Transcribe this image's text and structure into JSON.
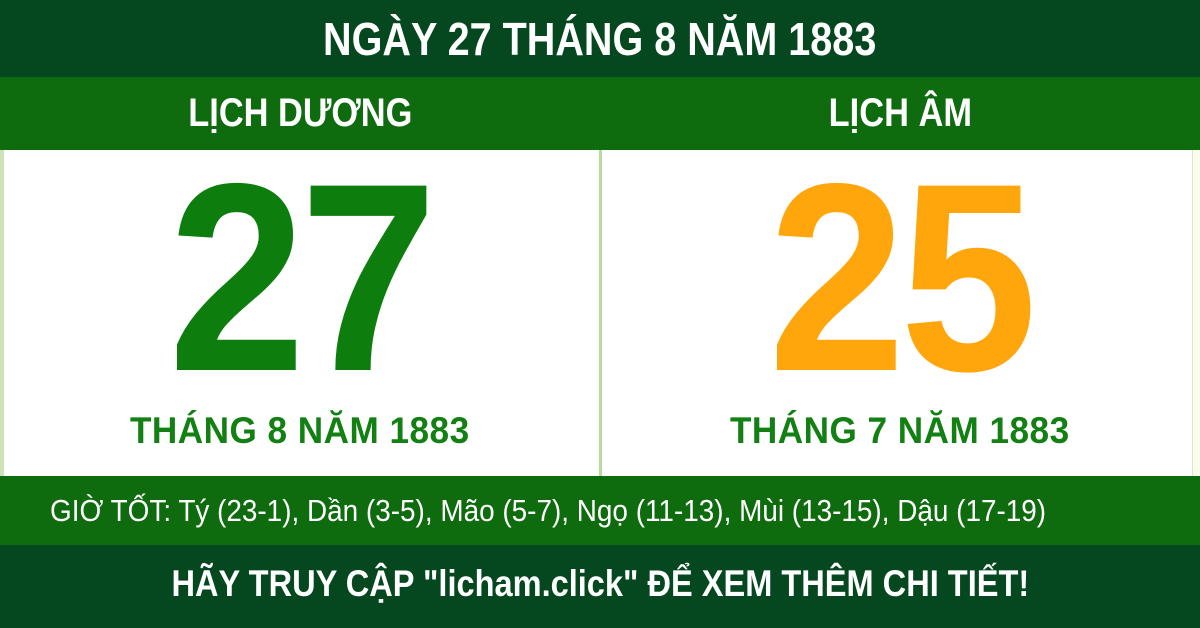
{
  "header": {
    "title": "NGÀY 27 THÁNG 8 NĂM 1883"
  },
  "calendars": {
    "solar": {
      "label": "LỊCH DƯƠNG",
      "day": "27",
      "month_year": "THÁNG 8 NĂM 1883"
    },
    "lunar": {
      "label": "LỊCH ÂM",
      "day": "25",
      "month_year": "THÁNG 7 NĂM 1883"
    }
  },
  "good_hours": {
    "text": "GIỜ TỐT: Tý (23-1), Dần (3-5), Mão (5-7), Ngọ (11-13), Mùi (13-15), Dậu (17-19)"
  },
  "footer": {
    "cta": "HÃY TRUY CẬP \"licham.click\" ĐỂ XEM THÊM CHI TIẾT!"
  },
  "colors": {
    "dark_green": "#05481f",
    "medium_green": "#0e6b0e",
    "day_green": "#0d7e0d",
    "text_green": "#128012",
    "day_orange": "#ffa60d",
    "divider_pale_green": "#b7db9c",
    "white": "#ffffff"
  }
}
